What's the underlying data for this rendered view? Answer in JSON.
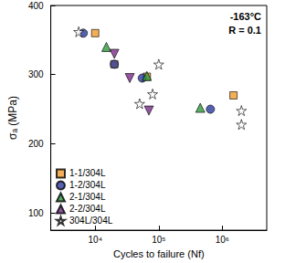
{
  "chart_data": {
    "type": "scatter",
    "x_label": "Cycles to failure (Nf)",
    "y_label": "σₐ (MPa)",
    "annotations": [
      "-163°C",
      "R = 0.1"
    ],
    "log": "x",
    "grid": false,
    "legend": "lower left",
    "xlim": [
      2000,
      5000000
    ],
    "xticks": [
      {
        "value": 10000,
        "label": "10⁴"
      },
      {
        "value": 100000,
        "label": "10⁵"
      },
      {
        "value": 1000000,
        "label": "10⁶"
      }
    ],
    "ylim": [
      75,
      400
    ],
    "yticks": [
      100,
      200,
      300,
      400
    ],
    "series": [
      {
        "name": "1-1/304L",
        "color": "#f39a2e",
        "marker": "square",
        "x": [
          10000,
          20000,
          65000,
          1500000
        ],
        "values": [
          360,
          315,
          297,
          270
        ]
      },
      {
        "name": "1-2/304L",
        "color": "#2a3a9c",
        "marker": "circle",
        "x": [
          6500,
          20000,
          55000,
          650000
        ],
        "values": [
          360,
          315,
          295,
          250
        ]
      },
      {
        "name": "2-1/304L",
        "color": "#2f9a3c",
        "marker": "triangle",
        "x": [
          15000,
          65000,
          450000
        ],
        "values": [
          340,
          298,
          252
        ]
      },
      {
        "name": "2-2/304L",
        "color": "#7a2a8a",
        "marker": "triangle-down",
        "x": [
          20000,
          35000,
          70000
        ],
        "values": [
          330,
          295,
          248
        ]
      },
      {
        "name": "304L/304L",
        "color": "#ffffff",
        "marker": "star",
        "x": [
          5500,
          50000,
          80000,
          100000,
          2000000,
          2000000
        ],
        "values": [
          362,
          258,
          272,
          315,
          248,
          228
        ]
      }
    ]
  }
}
